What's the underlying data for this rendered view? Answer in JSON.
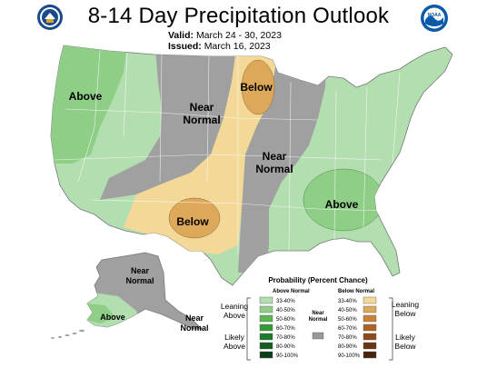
{
  "header": {
    "title": "8-14 Day Precipitation Outlook",
    "valid_label": "Valid:",
    "valid_dates": "March 24 - 30, 2023",
    "issued_label": "Issued:",
    "issued_date": "March 16, 2023"
  },
  "map_labels": {
    "west_above": "Above",
    "northern_plains_below": "Below",
    "rockies_near_normal_1": "Near",
    "rockies_near_normal_2": "Normal",
    "midwest_near_normal_1": "Near",
    "midwest_near_normal_2": "Normal",
    "south_below": "Below",
    "southeast_above": "Above",
    "alaska_near_normal_1": "Near",
    "alaska_near_normal_2": "Normal",
    "alaska_above": "Above",
    "aleutians_near_normal_1": "Near",
    "aleutians_near_normal_2": "Normal"
  },
  "logos": {
    "left": "doc-seal-icon",
    "right": "noaa-logo-icon",
    "noaa_text": "NOAA"
  },
  "legend": {
    "title": "Probability (Percent Chance)",
    "above_header": "Above Normal",
    "below_header": "Below Normal",
    "near_label_1": "Near",
    "near_label_2": "Normal",
    "leaning_above_1": "Leaning",
    "leaning_above_2": "Above",
    "likely_above_1": "Likely",
    "likely_above_2": "Above",
    "leaning_below_1": "Leaning",
    "leaning_below_2": "Below",
    "likely_below_1": "Likely",
    "likely_below_2": "Below",
    "above_bins": [
      {
        "label": "33-40%",
        "color": "#b2deb0"
      },
      {
        "label": "40-50%",
        "color": "#8fce86"
      },
      {
        "label": "50-60%",
        "color": "#5ab552"
      },
      {
        "label": "60-70%",
        "color": "#339a3a"
      },
      {
        "label": "70-80%",
        "color": "#1d7a2d"
      },
      {
        "label": "80-90%",
        "color": "#145d22"
      },
      {
        "label": "90-100%",
        "color": "#0b3f16"
      }
    ],
    "below_bins": [
      {
        "label": "33-40%",
        "color": "#f3d898"
      },
      {
        "label": "40-50%",
        "color": "#dea85a"
      },
      {
        "label": "50-60%",
        "color": "#c98236"
      },
      {
        "label": "60-70%",
        "color": "#ae6226"
      },
      {
        "label": "70-80%",
        "color": "#8c4a1d"
      },
      {
        "label": "80-90%",
        "color": "#6a3515"
      },
      {
        "label": "90-100%",
        "color": "#4a230e"
      }
    ],
    "near_color": "#999999"
  }
}
